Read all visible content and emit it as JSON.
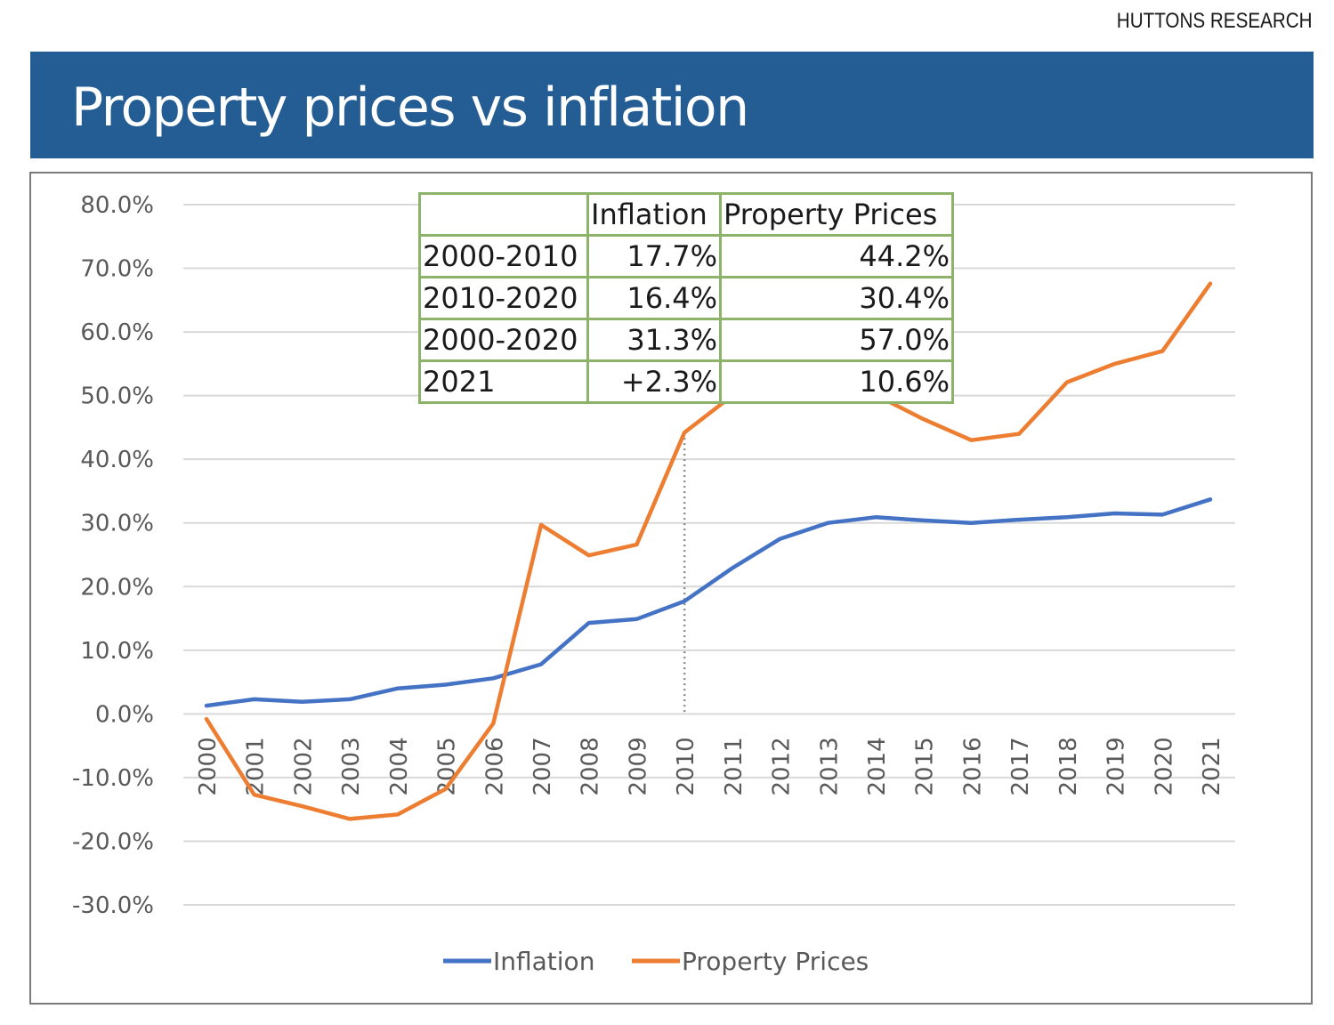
{
  "brand": "HUTTONS RESEARCH",
  "header": {
    "title": "Property prices vs inflation"
  },
  "colors": {
    "header_bg": "#245d94",
    "inflation": "#4472c4",
    "property": "#ed7d31",
    "table_border": "#8db36a",
    "gridline": "#d9d9d9"
  },
  "summary_table": {
    "headers": [
      "",
      "Inflation",
      "Property Prices"
    ],
    "rows": [
      [
        "2000-2010",
        "17.7%",
        "44.2%"
      ],
      [
        "2010-2020",
        "16.4%",
        "30.4%"
      ],
      [
        "2000-2020",
        "31.3%",
        "57.0%"
      ],
      [
        "2021",
        "+2.3%",
        "10.6%"
      ]
    ]
  },
  "chart_data": {
    "type": "line",
    "title": "Property prices vs inflation",
    "xlabel": "",
    "ylabel": "",
    "x": [
      "2000",
      "2001",
      "2002",
      "2003",
      "2004",
      "2005",
      "2006",
      "2007",
      "2008",
      "2009",
      "2010",
      "2011",
      "2012",
      "2013",
      "2014",
      "2015",
      "2016",
      "2017",
      "2018",
      "2019",
      "2020",
      "2021"
    ],
    "series": [
      {
        "name": "Inflation",
        "color": "#4472c4",
        "values": [
          1.3,
          2.3,
          1.9,
          2.3,
          4.0,
          4.6,
          5.6,
          7.8,
          14.3,
          14.9,
          17.7,
          22.9,
          27.5,
          30.0,
          30.9,
          30.4,
          30.0,
          30.5,
          30.9,
          31.5,
          31.3,
          33.7
        ]
      },
      {
        "name": "Property Prices",
        "color": "#ed7d31",
        "values": [
          -0.8,
          -12.7,
          -14.5,
          -16.5,
          -15.8,
          -11.8,
          -1.5,
          29.7,
          24.9,
          26.6,
          44.2,
          50.0,
          52.9,
          53.9,
          50.1,
          46.3,
          43.0,
          44.0,
          52.1,
          55.0,
          57.0,
          67.6
        ]
      }
    ],
    "ylim": [
      -30,
      80
    ],
    "yticks": [
      80,
      70,
      60,
      50,
      40,
      30,
      20,
      10,
      0,
      -10,
      -20,
      -30
    ],
    "ytick_labels": [
      "80.0%",
      "70.0%",
      "60.0%",
      "50.0%",
      "40.0%",
      "30.0%",
      "20.0%",
      "10.0%",
      "0.0%",
      "-10.0%",
      "-20.0%",
      "-30.0%"
    ],
    "grid": true,
    "legend": {
      "placement": "bottom",
      "entries": [
        "Inflation",
        "Property Prices"
      ]
    },
    "annotations": [
      {
        "type": "vertical-dotted-line",
        "x": "2010"
      }
    ]
  }
}
